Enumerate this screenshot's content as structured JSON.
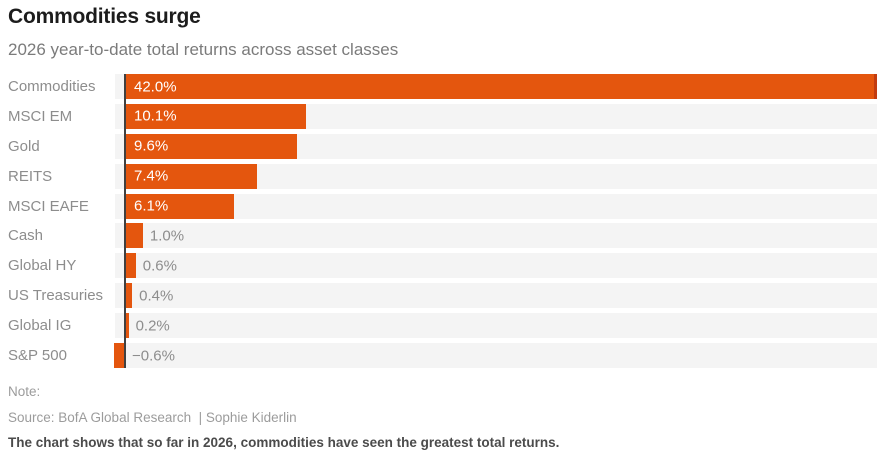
{
  "header": {
    "title": "Commodities surge",
    "subtitle": "2026 year-to-date total returns across asset classes"
  },
  "chart_data": {
    "type": "bar",
    "orientation": "horizontal",
    "title": "Commodities surge",
    "subtitle": "2026 year-to-date total returns across asset classes",
    "categories": [
      "Commodities",
      "MSCI EM",
      "Gold",
      "REITS",
      "MSCI EAFE",
      "Cash",
      "Global HY",
      "US Treasuries",
      "Global IG",
      "S&P 500"
    ],
    "values": [
      42.0,
      10.1,
      9.6,
      7.4,
      6.1,
      1.0,
      0.6,
      0.4,
      0.2,
      -0.6
    ],
    "value_labels": [
      "42.0%",
      "10.1%",
      "9.6%",
      "7.4%",
      "6.1%",
      "1.0%",
      "0.6%",
      "0.4%",
      "0.2%",
      "−0.6%"
    ],
    "unit": "%",
    "xlim": [
      -0.6,
      42.0
    ],
    "grid": false,
    "legend": "none",
    "inside_label_threshold": 3,
    "colors": {
      "bar": "#e4560e",
      "bar_clip_edge": "#c23c10",
      "track": "#f4f4f4",
      "baseline": "#404040",
      "inside_label": "#ffffff",
      "outside_label": "#8d8d8d"
    }
  },
  "footer": {
    "note_label": "Note:",
    "source": "Source: BofA Global Research  | Sophie Kiderlin",
    "caption": "The chart shows that so far in 2026, commodities have seen the greatest total returns."
  }
}
